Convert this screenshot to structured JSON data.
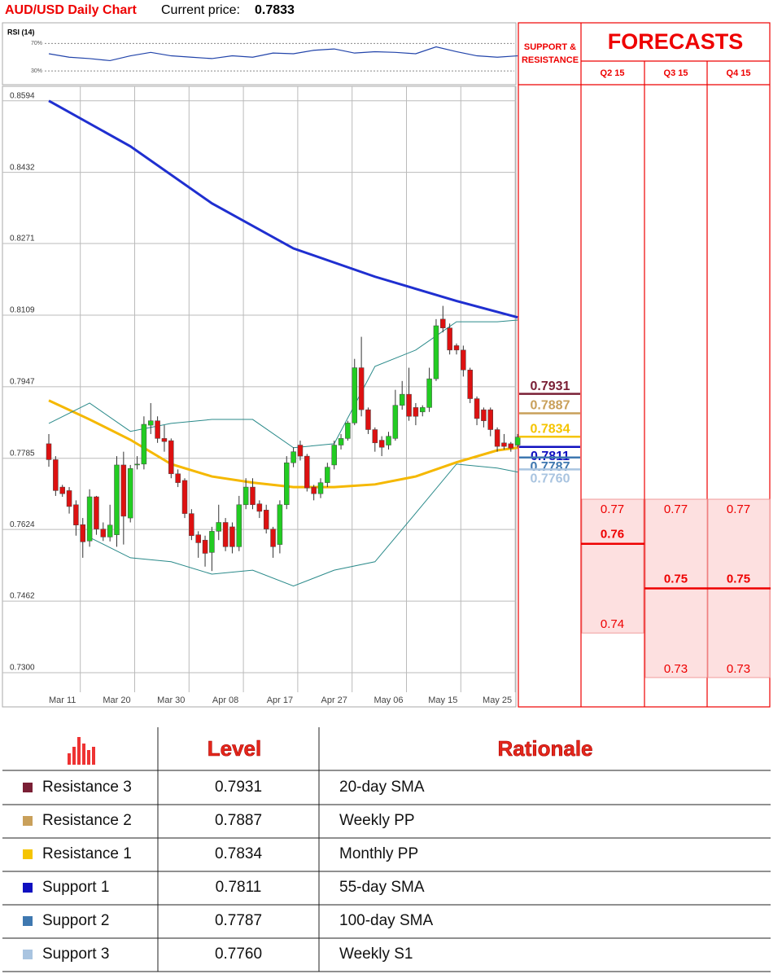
{
  "header": {
    "title": "AUD/USD Daily Chart",
    "price_label": "Current price:",
    "price": 0.7833
  },
  "chart_data": [
    {
      "type": "line",
      "title": "RSI (14)",
      "color": "#2244aa",
      "x": [
        0,
        3,
        6,
        9,
        12,
        15,
        18,
        21,
        24,
        27,
        30,
        33,
        36,
        39,
        42,
        45,
        48,
        51,
        54,
        57,
        60,
        63,
        66,
        69
      ],
      "values": [
        55,
        50,
        48,
        45,
        52,
        57,
        52,
        50,
        48,
        52,
        50,
        56,
        55,
        60,
        62,
        56,
        58,
        57,
        55,
        65,
        58,
        52,
        50,
        52
      ],
      "ylim": [
        10,
        100
      ],
      "yticks": [
        {
          "value": 70,
          "label": "70%"
        },
        {
          "value": 30,
          "label": "30%"
        }
      ],
      "grid": true
    },
    {
      "type": "candlestick",
      "up_color": "#22cc22",
      "down_color": "#dd1111",
      "categories": [
        null,
        null,
        "Mar 11",
        null,
        null,
        null,
        null,
        null,
        null,
        null,
        "Mar 20",
        null,
        null,
        null,
        null,
        null,
        null,
        null,
        "Mar 30",
        null,
        null,
        null,
        null,
        null,
        null,
        null,
        "Apr 08",
        null,
        null,
        null,
        null,
        null,
        null,
        null,
        "Apr 17",
        null,
        null,
        null,
        null,
        null,
        null,
        null,
        "Apr 27",
        null,
        null,
        null,
        null,
        null,
        null,
        null,
        "May 06",
        null,
        null,
        null,
        null,
        null,
        null,
        null,
        "May 15",
        null,
        null,
        null,
        null,
        null,
        null,
        null,
        "May 25",
        null,
        null,
        null
      ],
      "open": [
        0.7818,
        0.7782,
        0.772,
        0.7712,
        0.768,
        0.7635,
        0.7598,
        0.7698,
        0.7625,
        0.7607,
        0.7612,
        0.777,
        0.765,
        0.777,
        0.7772,
        0.786,
        0.787,
        0.783,
        0.7825,
        0.775,
        0.7735,
        0.766,
        0.7612,
        0.76,
        0.7572,
        0.762,
        0.764,
        0.763,
        0.7585,
        0.768,
        0.772,
        0.7682,
        0.7668,
        0.7625,
        0.759,
        0.768,
        0.7775,
        0.7815,
        0.779,
        0.772,
        0.7705,
        0.773,
        0.777,
        0.7815,
        0.783,
        0.7865,
        0.799,
        0.7895,
        0.785,
        0.7826,
        0.7815,
        0.783,
        0.7905,
        0.793,
        0.79,
        0.789,
        0.79,
        0.7965,
        0.81,
        0.808,
        0.804,
        0.803,
        0.7985,
        0.792,
        0.7895,
        0.7895,
        0.785,
        0.782,
        0.7818,
        0.7815
      ],
      "high": [
        0.784,
        0.779,
        0.7725,
        0.772,
        0.769,
        0.765,
        0.7715,
        0.77,
        0.764,
        0.768,
        0.779,
        0.78,
        0.777,
        0.779,
        0.788,
        0.791,
        0.788,
        0.786,
        0.783,
        0.776,
        0.774,
        0.767,
        0.762,
        0.761,
        0.763,
        0.768,
        0.765,
        0.764,
        0.77,
        0.774,
        0.774,
        0.769,
        0.768,
        0.763,
        0.769,
        0.779,
        0.781,
        0.7825,
        0.7795,
        0.7725,
        0.774,
        0.7775,
        0.7825,
        0.784,
        0.787,
        0.801,
        0.806,
        0.79,
        0.7855,
        0.7835,
        0.7845,
        0.794,
        0.796,
        0.799,
        0.791,
        0.7905,
        0.799,
        0.81,
        0.813,
        0.809,
        0.8045,
        0.804,
        0.799,
        0.7925,
        0.79,
        0.79,
        0.7855,
        0.784,
        0.7822,
        0.784
      ],
      "low": [
        0.7766,
        0.77,
        0.7698,
        0.766,
        0.761,
        0.756,
        0.7585,
        0.7612,
        0.7598,
        0.7597,
        0.7585,
        0.759,
        0.764,
        0.776,
        0.776,
        0.784,
        0.782,
        0.78,
        0.774,
        0.772,
        0.765,
        0.76,
        0.756,
        0.754,
        0.753,
        0.76,
        0.7575,
        0.757,
        0.7575,
        0.767,
        0.767,
        0.765,
        0.7615,
        0.756,
        0.757,
        0.767,
        0.7765,
        0.778,
        0.771,
        0.769,
        0.7695,
        0.772,
        0.776,
        0.7805,
        0.7825,
        0.786,
        0.788,
        0.784,
        0.78,
        0.779,
        0.7805,
        0.7825,
        0.7895,
        0.787,
        0.786,
        0.788,
        0.789,
        0.796,
        0.807,
        0.802,
        0.802,
        0.797,
        0.791,
        0.786,
        0.7855,
        0.7835,
        0.78,
        0.7805,
        0.78,
        0.781
      ],
      "close": [
        0.7782,
        0.7712,
        0.7705,
        0.7676,
        0.7634,
        0.7596,
        0.7698,
        0.7625,
        0.7607,
        0.7634,
        0.777,
        0.7654,
        0.7762,
        0.7772,
        0.7862,
        0.787,
        0.783,
        0.7823,
        0.775,
        0.773,
        0.766,
        0.761,
        0.7594,
        0.757,
        0.762,
        0.764,
        0.7585,
        0.7585,
        0.768,
        0.772,
        0.768,
        0.7665,
        0.7625,
        0.7585,
        0.768,
        0.7775,
        0.78,
        0.779,
        0.7718,
        0.7705,
        0.773,
        0.7765,
        0.7815,
        0.783,
        0.7865,
        0.799,
        0.7895,
        0.785,
        0.782,
        0.781,
        0.7835,
        0.7905,
        0.793,
        0.788,
        0.788,
        0.79,
        0.7965,
        0.8085,
        0.808,
        0.803,
        0.803,
        0.7985,
        0.792,
        0.7875,
        0.787,
        0.785,
        0.7812,
        0.7812,
        0.7808,
        0.7833
      ],
      "series": [
        {
          "color": "#1f2fd0",
          "x": [
            0,
            12,
            24,
            36,
            48,
            60,
            69
          ],
          "values": [
            0.8594,
            0.8491,
            0.8362,
            0.826,
            0.8196,
            0.8141,
            0.8104
          ]
        },
        {
          "color": "#f5b800",
          "x": [
            0,
            6,
            12,
            18,
            24,
            30,
            36,
            42,
            48,
            54,
            60,
            66,
            69
          ],
          "values": [
            0.7916,
            0.7873,
            0.7827,
            0.7772,
            0.7744,
            0.773,
            0.772,
            0.772,
            0.7726,
            0.7744,
            0.7776,
            0.7803,
            0.7809
          ]
        },
        {
          "color": "#2a8a8a",
          "x": [
            0,
            6,
            12,
            18,
            24,
            30,
            36,
            42,
            48,
            54,
            60,
            66,
            69
          ],
          "values": [
            0.7864,
            0.791,
            0.7846,
            0.7864,
            0.7873,
            0.7873,
            0.7809,
            0.7818,
            0.7993,
            0.803,
            0.8094,
            0.8094,
            0.8098
          ]
        },
        {
          "color": "#2a8a8a",
          "x": [
            6,
            12,
            18,
            24,
            30,
            36,
            42,
            48,
            54,
            60,
            66,
            69
          ],
          "values": [
            0.7606,
            0.756,
            0.7551,
            0.7523,
            0.7532,
            0.7496,
            0.7532,
            0.7551,
            0.7661,
            0.7772,
            0.7763,
            0.7754
          ]
        }
      ],
      "ylim": [
        0.7265,
        0.8612
      ],
      "yticks": [
        0.8594,
        0.8432,
        0.8271,
        0.8109,
        0.7947,
        0.7785,
        0.7624,
        0.7462,
        {
          "value": 0.73,
          "label": "0.7300"
        }
      ],
      "grid": true
    }
  ],
  "levels": [
    {
      "name": "Resistance 3",
      "value": 0.7931,
      "rationale": "20-day SMA",
      "color": "#7a1f35"
    },
    {
      "name": "Resistance 2",
      "value": 0.7887,
      "rationale": "Weekly PP",
      "color": "#c9a05a"
    },
    {
      "name": "Resistance 1",
      "value": 0.7834,
      "rationale": "Monthly PP",
      "color": "#f5c400"
    },
    {
      "name": "Support 1",
      "value": 0.7811,
      "rationale": "55-day SMA",
      "color": "#1010c0"
    },
    {
      "name": "Support 2",
      "value": 0.7787,
      "rationale": "100-day SMA",
      "color": "#3f78b0"
    },
    {
      "name": "Support 3",
      "value": {
        "value": 0.776,
        "label": "0.7760"
      },
      "rationale": "Weekly S1",
      "color": "#a9c4e0"
    }
  ],
  "forecast": {
    "title": "FORECASTS",
    "sr_label": "SUPPORT & RESISTANCE",
    "quarters": [
      {
        "label": "Q2 15",
        "high": 0.77,
        "central": 0.76,
        "low": 0.74
      },
      {
        "label": "Q3 15",
        "high": 0.77,
        "central": 0.75,
        "low": 0.73
      },
      {
        "label": "Q4 15",
        "high": 0.77,
        "central": 0.75,
        "low": 0.73
      }
    ]
  },
  "table": {
    "headers": [
      "Level",
      "Rationale"
    ]
  }
}
